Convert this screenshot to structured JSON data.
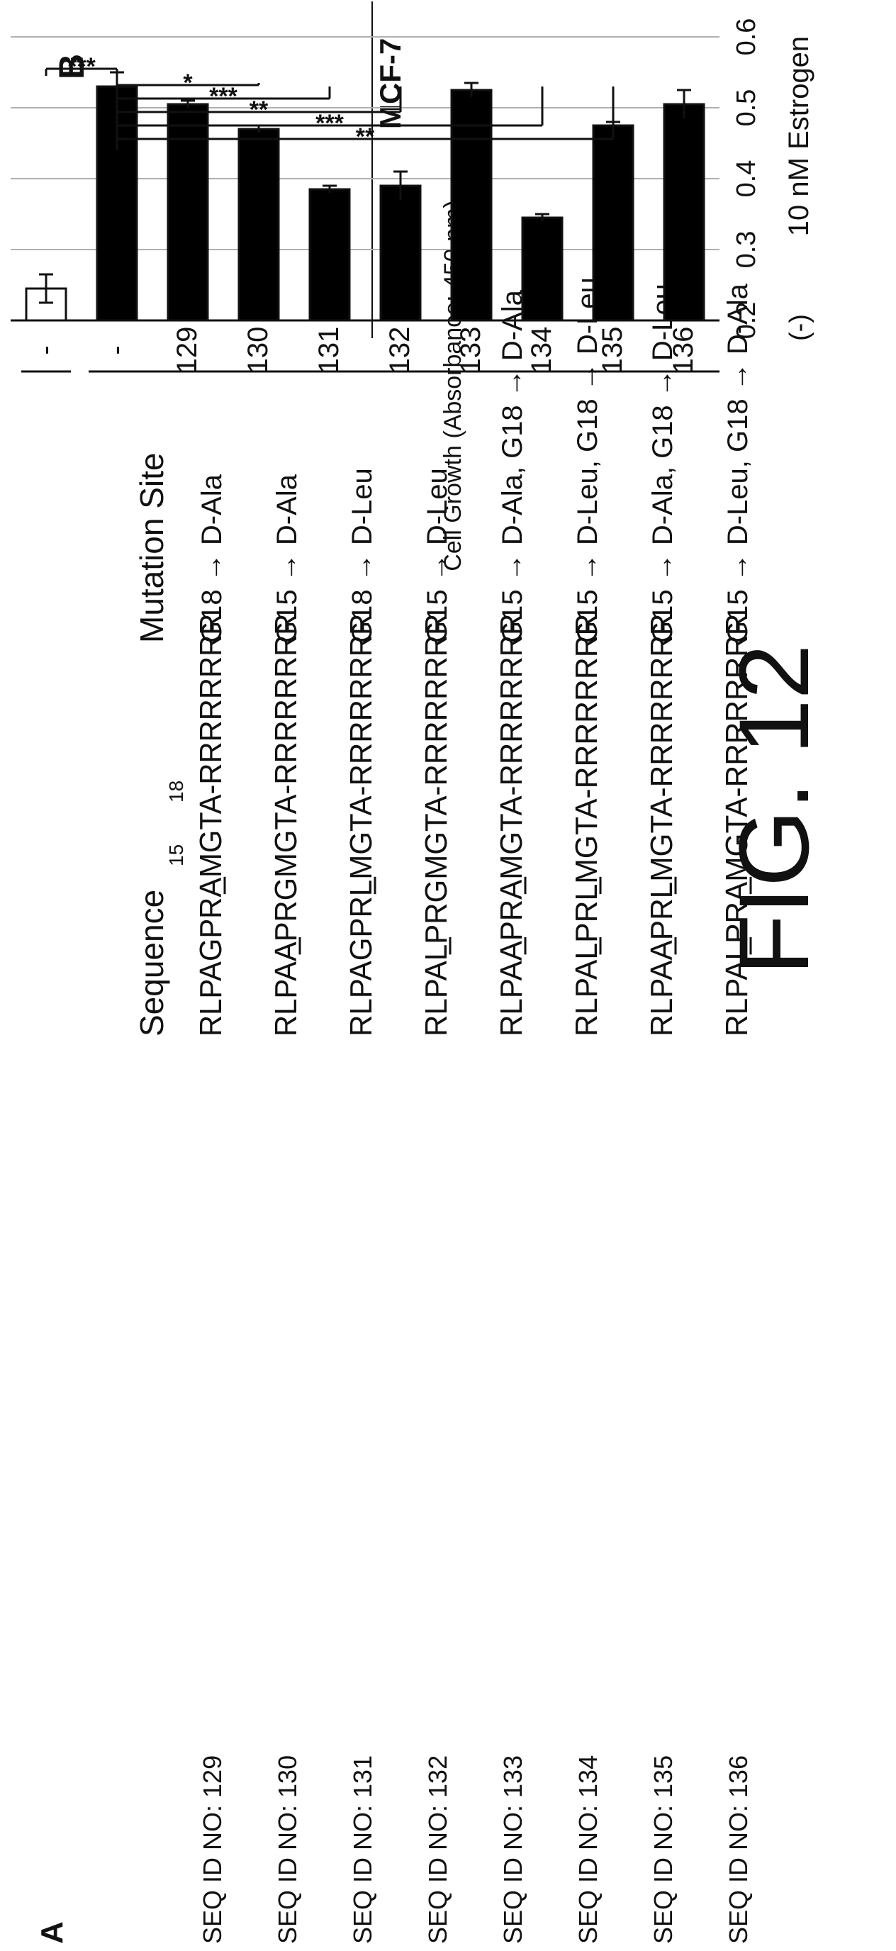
{
  "panel_a": {
    "panel_label": "A",
    "sequence_header": "Sequence",
    "mutation_header": "Mutation Site",
    "position_numbers": [
      "15",
      "18"
    ],
    "rows": [
      {
        "id": "SEQ ID NO: 129",
        "seq": "RLPAGPRAMGTA-RRRRRRRR",
        "underline": [
          7
        ],
        "mutation": "G18 → D-Ala"
      },
      {
        "id": "SEQ ID NO: 130",
        "seq": "RLPAAPRGMGTA-RRRRRRRR",
        "underline": [
          4
        ],
        "mutation": "G15 → D-Ala"
      },
      {
        "id": "SEQ ID NO: 131",
        "seq": "RLPAGPRLMGTA-RRRRRRRR",
        "underline": [
          7
        ],
        "mutation": "G18 → D-Leu"
      },
      {
        "id": "SEQ ID NO: 132",
        "seq": "RLPALPRGMGTA-RRRRRRRR",
        "underline": [
          4
        ],
        "mutation": "G15 → D-Leu"
      },
      {
        "id": "SEQ ID NO: 133",
        "seq": "RLPAAPRAMGTA-RRRRRRRR",
        "underline": [
          4,
          7
        ],
        "mutation": "G15 → D-Ala, G18 → D-Ala"
      },
      {
        "id": "SEQ ID NO: 134",
        "seq": "RLPALPRLMGTA-RRRRRRRR",
        "underline": [
          4,
          7
        ],
        "mutation": "G15 → D-Leu, G18 → D-Leu"
      },
      {
        "id": "SEQ ID NO: 135",
        "seq": "RLPAAPRLMGTA-RRRRRRRR",
        "underline": [
          4,
          7
        ],
        "mutation": "G15 → D-Ala, G18 → D-Leu"
      },
      {
        "id": "SEQ ID NO: 136",
        "seq": "RLPALPRAMGTA-RRRRRRRR",
        "underline": [
          4,
          7
        ],
        "mutation": "G15 → D-Leu, G18 → D-Ala"
      }
    ]
  },
  "panel_b": {
    "panel_label": "B",
    "cell_line": "MCF-7",
    "group_label": "(-)",
    "treatment_label": "10 nM Estrogen",
    "significance": [
      {
        "from": "-",
        "to": "-",
        "stars": "***"
      },
      {
        "from": "-",
        "to": "130",
        "stars": "*"
      },
      {
        "from": "-",
        "to": "131",
        "stars": "***"
      },
      {
        "from": "-",
        "to": "132",
        "stars": "**"
      },
      {
        "from": "-",
        "to": "134",
        "stars": "***"
      },
      {
        "from": "-",
        "to": "135",
        "stars": "**"
      }
    ]
  },
  "figure_label": "FIG. 12",
  "chart_data": {
    "type": "bar",
    "title": "MCF-7",
    "ylabel": "Cell Growth (Absorbance: 450 nm)",
    "xlabel": "10 nM Estrogen",
    "ylim": [
      0.2,
      0.6
    ],
    "yticks": [
      "0.2",
      "0.3",
      "0.4",
      "0.5",
      "0.6"
    ],
    "grid": true,
    "categories": [
      "-",
      "-",
      "129",
      "130",
      "131",
      "132",
      "133",
      "134",
      "135",
      "136"
    ],
    "values": [
      0.245,
      0.53,
      0.505,
      0.47,
      0.385,
      0.39,
      0.525,
      0.345,
      0.475,
      0.505
    ],
    "errors": [
      0.02,
      0.02,
      0.005,
      0.005,
      0.005,
      0.02,
      0.01,
      0.005,
      0.005,
      0.02
    ],
    "fills": [
      "#ffffff",
      "#000000",
      "#000000",
      "#000000",
      "#000000",
      "#000000",
      "#000000",
      "#000000",
      "#000000",
      "#000000"
    ]
  }
}
